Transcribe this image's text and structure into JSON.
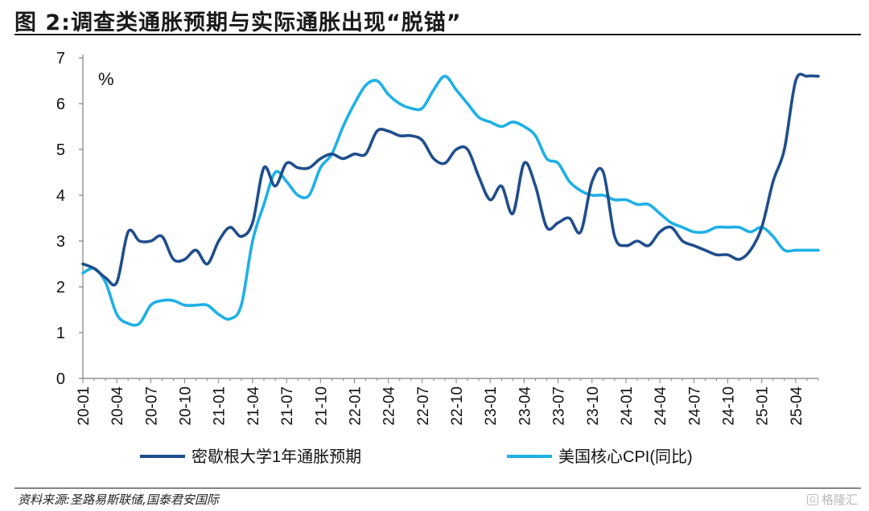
{
  "title": "图 2:调查类通胀预期与实际通胀出现“脱锚”",
  "source": "资料来源:圣路易斯联储,国泰君安国际",
  "watermark": "格隆汇",
  "chart_data": {
    "type": "line",
    "unit_label": "%",
    "ylim": [
      0,
      7
    ],
    "yticks": [
      0,
      1,
      2,
      3,
      4,
      5,
      6,
      7
    ],
    "xlim": [
      "2020-01",
      "2025-06"
    ],
    "xtick_labels": [
      "20-01",
      "20-04",
      "20-07",
      "20-10",
      "21-01",
      "21-04",
      "21-07",
      "21-10",
      "22-01",
      "22-04",
      "22-07",
      "22-10",
      "23-01",
      "23-04",
      "23-07",
      "23-10",
      "24-01",
      "24-04",
      "24-07",
      "24-10",
      "25-01",
      "25-04"
    ],
    "legend_position": "bottom",
    "grid": false,
    "series": [
      {
        "name": "密歇根大学1年通胀预期",
        "color": "#1f4e8c",
        "x": [
          "2020-01",
          "2020-02",
          "2020-03",
          "2020-04",
          "2020-05",
          "2020-06",
          "2020-07",
          "2020-08",
          "2020-09",
          "2020-10",
          "2020-11",
          "2020-12",
          "2021-01",
          "2021-02",
          "2021-03",
          "2021-04",
          "2021-05",
          "2021-06",
          "2021-07",
          "2021-08",
          "2021-09",
          "2021-10",
          "2021-11",
          "2021-12",
          "2022-01",
          "2022-02",
          "2022-03",
          "2022-04",
          "2022-05",
          "2022-06",
          "2022-07",
          "2022-08",
          "2022-09",
          "2022-10",
          "2022-11",
          "2022-12",
          "2023-01",
          "2023-02",
          "2023-03",
          "2023-04",
          "2023-05",
          "2023-06",
          "2023-07",
          "2023-08",
          "2023-09",
          "2023-10",
          "2023-11",
          "2023-12",
          "2024-01",
          "2024-02",
          "2024-03",
          "2024-04",
          "2024-05",
          "2024-06",
          "2024-07",
          "2024-08",
          "2024-09",
          "2024-10",
          "2024-11",
          "2024-12",
          "2025-01",
          "2025-02",
          "2025-03",
          "2025-04",
          "2025-05",
          "2025-06"
        ],
        "values": [
          2.5,
          2.4,
          2.2,
          2.1,
          3.2,
          3.0,
          3.0,
          3.1,
          2.6,
          2.6,
          2.8,
          2.5,
          3.0,
          3.3,
          3.1,
          3.4,
          4.6,
          4.2,
          4.7,
          4.6,
          4.6,
          4.8,
          4.9,
          4.8,
          4.9,
          4.9,
          5.4,
          5.4,
          5.3,
          5.3,
          5.2,
          4.8,
          4.7,
          5.0,
          5.0,
          4.4,
          3.9,
          4.2,
          3.6,
          4.7,
          4.2,
          3.3,
          3.4,
          3.5,
          3.2,
          4.3,
          4.5,
          3.1,
          2.9,
          3.0,
          2.9,
          3.2,
          3.3,
          3.0,
          2.9,
          2.8,
          2.7,
          2.7,
          2.6,
          2.8,
          3.3,
          4.3,
          5.0,
          6.5,
          6.6,
          6.6
        ]
      },
      {
        "name": "美国核心CPI(同比)",
        "color": "#1eb0e6",
        "x": [
          "2020-01",
          "2020-02",
          "2020-03",
          "2020-04",
          "2020-05",
          "2020-06",
          "2020-07",
          "2020-08",
          "2020-09",
          "2020-10",
          "2020-11",
          "2020-12",
          "2021-01",
          "2021-02",
          "2021-03",
          "2021-04",
          "2021-05",
          "2021-06",
          "2021-07",
          "2021-08",
          "2021-09",
          "2021-10",
          "2021-11",
          "2021-12",
          "2022-01",
          "2022-02",
          "2022-03",
          "2022-04",
          "2022-05",
          "2022-06",
          "2022-07",
          "2022-08",
          "2022-09",
          "2022-10",
          "2022-11",
          "2022-12",
          "2023-01",
          "2023-02",
          "2023-03",
          "2023-04",
          "2023-05",
          "2023-06",
          "2023-07",
          "2023-08",
          "2023-09",
          "2023-10",
          "2023-11",
          "2023-12",
          "2024-01",
          "2024-02",
          "2024-03",
          "2024-04",
          "2024-05",
          "2024-06",
          "2024-07",
          "2024-08",
          "2024-09",
          "2024-10",
          "2024-11",
          "2024-12",
          "2025-01",
          "2025-02",
          "2025-03",
          "2025-04",
          "2025-05",
          "2025-06"
        ],
        "values": [
          2.3,
          2.4,
          2.1,
          1.4,
          1.2,
          1.2,
          1.6,
          1.7,
          1.7,
          1.6,
          1.6,
          1.6,
          1.4,
          1.3,
          1.6,
          3.0,
          3.8,
          4.5,
          4.3,
          4.0,
          4.0,
          4.6,
          4.9,
          5.5,
          6.0,
          6.4,
          6.5,
          6.2,
          6.0,
          5.9,
          5.9,
          6.3,
          6.6,
          6.3,
          6.0,
          5.7,
          5.6,
          5.5,
          5.6,
          5.5,
          5.3,
          4.8,
          4.7,
          4.3,
          4.1,
          4.0,
          4.0,
          3.9,
          3.9,
          3.8,
          3.8,
          3.6,
          3.4,
          3.3,
          3.2,
          3.2,
          3.3,
          3.3,
          3.3,
          3.2,
          3.3,
          3.1,
          2.8,
          2.8,
          2.8,
          2.8
        ]
      }
    ]
  }
}
